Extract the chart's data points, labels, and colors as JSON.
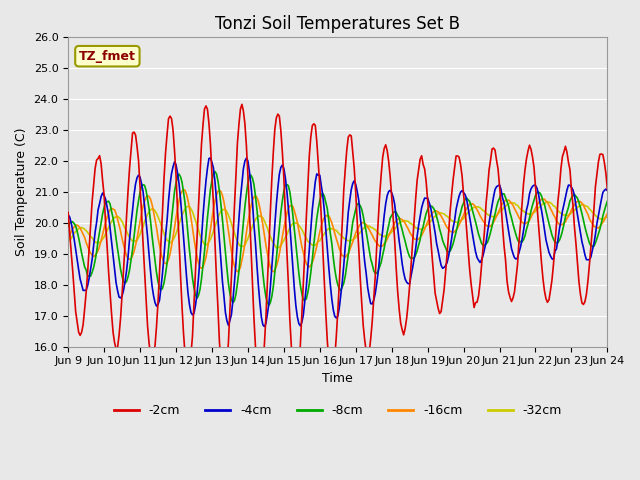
{
  "title": "Tonzi Soil Temperatures Set B",
  "xlabel": "Time",
  "ylabel": "Soil Temperature (C)",
  "ylim": [
    16.0,
    26.0
  ],
  "xlim": [
    0,
    360
  ],
  "yticks": [
    16.0,
    17.0,
    18.0,
    19.0,
    20.0,
    21.0,
    22.0,
    23.0,
    24.0,
    25.0,
    26.0
  ],
  "xtick_positions": [
    0,
    24,
    48,
    72,
    96,
    120,
    144,
    168,
    192,
    216,
    240,
    264,
    288,
    312,
    336,
    360
  ],
  "xtick_labels": [
    "Jun 9",
    "Jun 10",
    "Jun 11",
    "Jun 12",
    "Jun 13",
    "Jun 14",
    "Jun 15",
    "Jun 16",
    "Jun 17",
    "Jun 18",
    "Jun 19",
    "Jun 20",
    "Jun 21",
    "Jun 22",
    "Jun 23",
    "Jun 24"
  ],
  "annotation_text": "TZ_fmet",
  "series_colors": {
    "-2cm": "#dd0000",
    "-4cm": "#0000cc",
    "-8cm": "#00aa00",
    "-16cm": "#ff8800",
    "-32cm": "#cccc00"
  },
  "legend_labels": [
    "-2cm",
    "-4cm",
    "-8cm",
    "-16cm",
    "-32cm"
  ],
  "legend_colors": [
    "#dd0000",
    "#0000cc",
    "#00aa00",
    "#ff8800",
    "#cccc00"
  ],
  "bg_color": "#e8e8e8",
  "plot_bg_color": "#e8e8e8",
  "grid_color": "#ffffff",
  "title_fontsize": 12,
  "label_fontsize": 9,
  "tick_fontsize": 8
}
